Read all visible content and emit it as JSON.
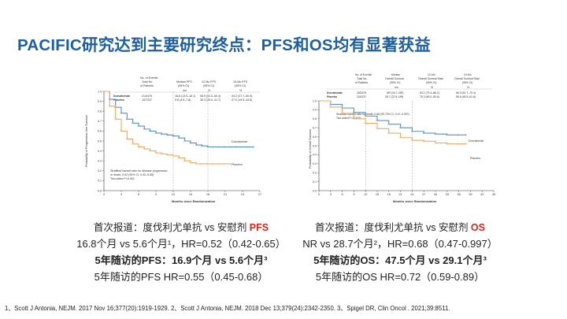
{
  "slide": {
    "title": "PACIFIC研究达到主要研究终点：PFS和OS均有显著获益",
    "references": "1、Scott J Antonia, NEJM. 2017 Nov 16;377(20):1919-1929. 2、Scott J Antonia, NEJM. 2018 Dec 13;379(24):2342-2350. 3、Spigel DR, Clin Oncol . 2021;39:8511."
  },
  "pfs_figure": {
    "table_headers": [
      "No. of Events/",
      "Total No.",
      "of Patients",
      "Median PFS",
      "(95% CI)",
      "12-Mo PFS",
      "(95% CI)",
      "18-Mo PFS",
      "(95% CI)",
      "mo",
      "%",
      "%"
    ],
    "rows": [
      {
        "group": "Durvalumab",
        "events": "214/476",
        "median": "16.8 (13.0–18.1)",
        "m12": "55.9 (51.0–60.4)",
        "m18": "44.2 (37.7–50.5)"
      },
      {
        "group": "Placebo",
        "events": "157/237",
        "median": "5.6 (4.6–7.8)",
        "m12": "35.3 (29.0–41.7)",
        "m18": "27.0 (19.9–34.5)"
      }
    ],
    "ylabel": "Probability of Progression-free Survival",
    "xlabel": "Months since Randomization",
    "hr_text": [
      "Stratified hazard ratio for disease progression",
      "or death, 0.52 (95% CI, 0.42–0.65)",
      "Two-sided P<0.001"
    ],
    "curve_labels": [
      "Durvalumab",
      "Placebo"
    ]
  },
  "os_figure": {
    "table_headers": [
      "No. of Events/",
      "Total No.",
      "of Patients",
      "Median",
      "Overall Survival",
      "(95% CI)",
      "12-Mo",
      "Overall Survival Rate",
      "(95% CI)",
      "24-Mo",
      "Overall Survival Rate",
      "(95% CI)",
      "mo",
      "%",
      "%"
    ],
    "rows": [
      {
        "group": "Durvalumab",
        "events": "183/476",
        "median": "NR (34.7–NR)",
        "m12": "83.1 (79.4–86.2)",
        "m24": "66.3 (61.7–70.4)"
      },
      {
        "group": "Placebo",
        "events": "116/237",
        "median": "28.7 (22.9–NR)",
        "m12": "75.3 (69.0–80.6)",
        "m24": "55.6 (48.9–61.8)"
      }
    ],
    "ylabel": "Probability of Overall Survival",
    "xlabel": "Months since Randomization",
    "hr_text": [
      "Stratified hazard ratio for death, 0.68 (99.73% CI, 0.47–0.997)",
      "Two-sided P=0.0025"
    ],
    "curve_labels": [
      "Durvalumab",
      "Placebo"
    ]
  },
  "pfs_caption": {
    "head_prefix": "首次报道：度伐利尤单抗 vs 安慰剂 ",
    "head_highlight": "PFS",
    "line2": "16.8个月 vs 5.6个月¹，HR=0.52（0.42-0.65）",
    "line3": "5年随访的PFS：16.9个月 vs 5.6个月³",
    "line4": "5年随访的PFS HR=0.55（0.45-0.68）"
  },
  "os_caption": {
    "head_prefix": "首次报道：度伐利尤单抗 vs 安慰剂 ",
    "head_highlight": "OS",
    "line2": "NR vs 28.7个月²，HR=0.68（0.47-0.997）",
    "line3": "5年随访的OS：47.5个月 vs 29.1个月³",
    "line4": "5年随访的OS HR=0.72（0.59-0.89）"
  },
  "colors": {
    "title": "#1f5f9e",
    "durvalumab": "#5a8fc4",
    "placebo": "#f0a860",
    "highlight": "#d9261c"
  },
  "chart_data": [
    {
      "type": "line",
      "title": "",
      "xlabel": "Months since Randomization",
      "ylabel": "Probability of Progression-free Survival",
      "xlim": [
        0,
        27
      ],
      "ylim": [
        0,
        1.0
      ],
      "x_ticks": [
        0,
        3,
        6,
        9,
        12,
        15,
        18,
        21,
        24,
        27
      ],
      "y_ticks": [
        0.0,
        0.1,
        0.2,
        0.3,
        0.4,
        0.5,
        0.6,
        0.7,
        0.8,
        0.9,
        1.0
      ],
      "highlight_x": [
        12,
        18
      ],
      "series": [
        {
          "name": "Durvalumab",
          "x": [
            0,
            1,
            2,
            3,
            4,
            5,
            6,
            7,
            8,
            9,
            10,
            11,
            12,
            13,
            14,
            15,
            16,
            17,
            18,
            19,
            20,
            21,
            22,
            23,
            24,
            25,
            26
          ],
          "y": [
            1.0,
            0.92,
            0.84,
            0.78,
            0.72,
            0.68,
            0.65,
            0.62,
            0.6,
            0.58,
            0.57,
            0.56,
            0.55,
            0.53,
            0.5,
            0.48,
            0.46,
            0.45,
            0.44,
            0.44,
            0.44,
            0.44,
            0.44,
            0.44,
            0.44,
            0.44,
            0.44
          ]
        },
        {
          "name": "Placebo",
          "x": [
            0,
            1,
            2,
            3,
            4,
            5,
            6,
            7,
            8,
            9,
            10,
            11,
            12,
            13,
            14,
            15,
            16,
            17,
            18,
            19,
            20,
            21,
            22
          ],
          "y": [
            1.0,
            0.85,
            0.72,
            0.6,
            0.52,
            0.47,
            0.44,
            0.42,
            0.4,
            0.38,
            0.37,
            0.36,
            0.35,
            0.33,
            0.3,
            0.28,
            0.27,
            0.27,
            0.27,
            0.27,
            0.27,
            0.27,
            0.27
          ]
        }
      ]
    },
    {
      "type": "line",
      "title": "",
      "xlabel": "Months since Randomization",
      "ylabel": "Probability of Overall Survival",
      "xlim": [
        0,
        45
      ],
      "ylim": [
        0,
        1.0
      ],
      "x_ticks": [
        0,
        3,
        6,
        9,
        12,
        15,
        18,
        21,
        24,
        27,
        30,
        33,
        36,
        39,
        42,
        45
      ],
      "y_ticks": [
        0.0,
        0.1,
        0.2,
        0.3,
        0.4,
        0.5,
        0.6,
        0.7,
        0.8,
        0.9,
        1.0
      ],
      "highlight_x": [
        12,
        24
      ],
      "series": [
        {
          "name": "Durvalumab",
          "x": [
            0,
            3,
            6,
            9,
            12,
            15,
            18,
            21,
            24,
            27,
            30,
            33,
            36,
            38
          ],
          "y": [
            1.0,
            0.96,
            0.92,
            0.87,
            0.83,
            0.78,
            0.74,
            0.7,
            0.66,
            0.64,
            0.63,
            0.62,
            0.62,
            0.62
          ]
        },
        {
          "name": "Placebo",
          "x": [
            0,
            3,
            6,
            9,
            12,
            15,
            18,
            21,
            24,
            27,
            30,
            33,
            36,
            38
          ],
          "y": [
            1.0,
            0.93,
            0.86,
            0.8,
            0.75,
            0.69,
            0.64,
            0.59,
            0.56,
            0.55,
            0.53,
            0.52,
            0.52,
            0.52
          ]
        }
      ]
    }
  ]
}
